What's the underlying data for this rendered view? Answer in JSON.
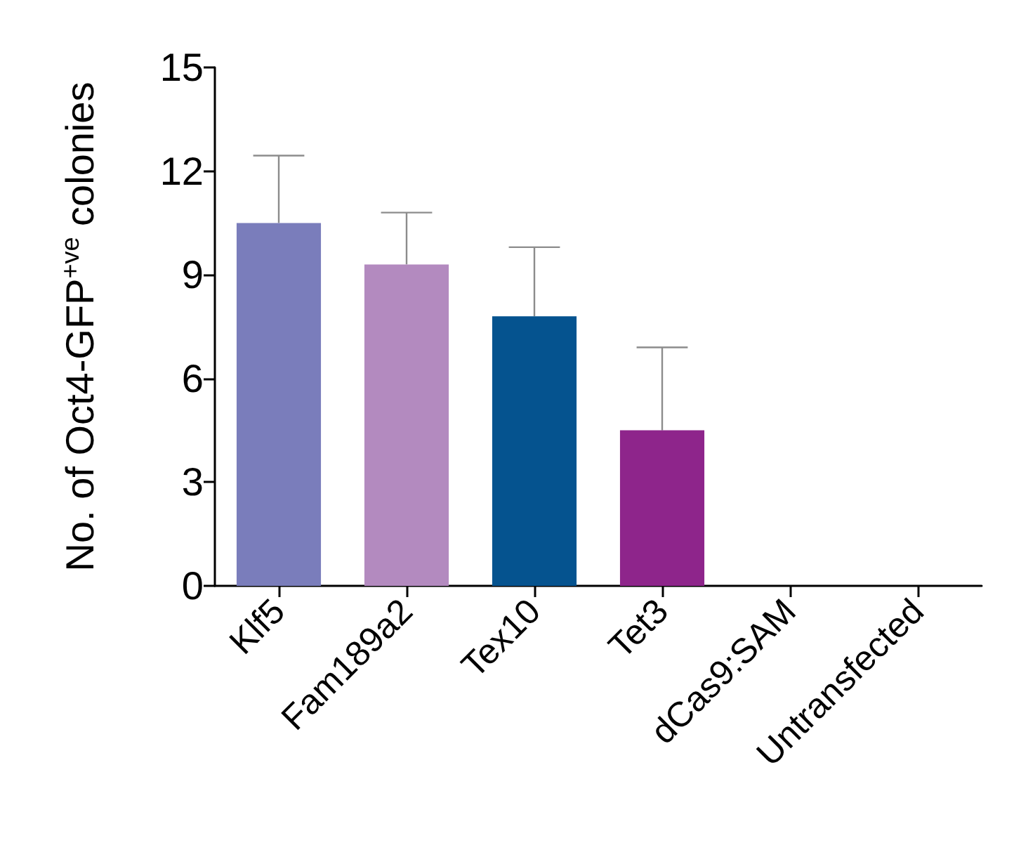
{
  "chart_data": {
    "type": "bar",
    "ylabel": "No. of Oct4-GFP$^{+ve}$ colonies",
    "categories": [
      "Klf5",
      "Fam189a2",
      "Tex10",
      "Tet3",
      "dCas9:SAM",
      "Untransfected"
    ],
    "values": [
      10.5,
      9.3,
      7.8,
      4.5,
      0,
      0
    ],
    "colors": [
      "#7a7dbb",
      "#b38abf",
      "#05538f",
      "#8e258b",
      "#7a7dbb",
      "#7a7dbb"
    ],
    "errors": [
      [
        10.5,
        12.45
      ],
      [
        9.3,
        10.8
      ],
      [
        7.8,
        9.8
      ],
      [
        4.5,
        6.9
      ],
      null,
      null
    ],
    "ylim": [
      0,
      15
    ],
    "yticks": [
      0,
      3,
      6,
      9,
      12,
      15
    ]
  }
}
